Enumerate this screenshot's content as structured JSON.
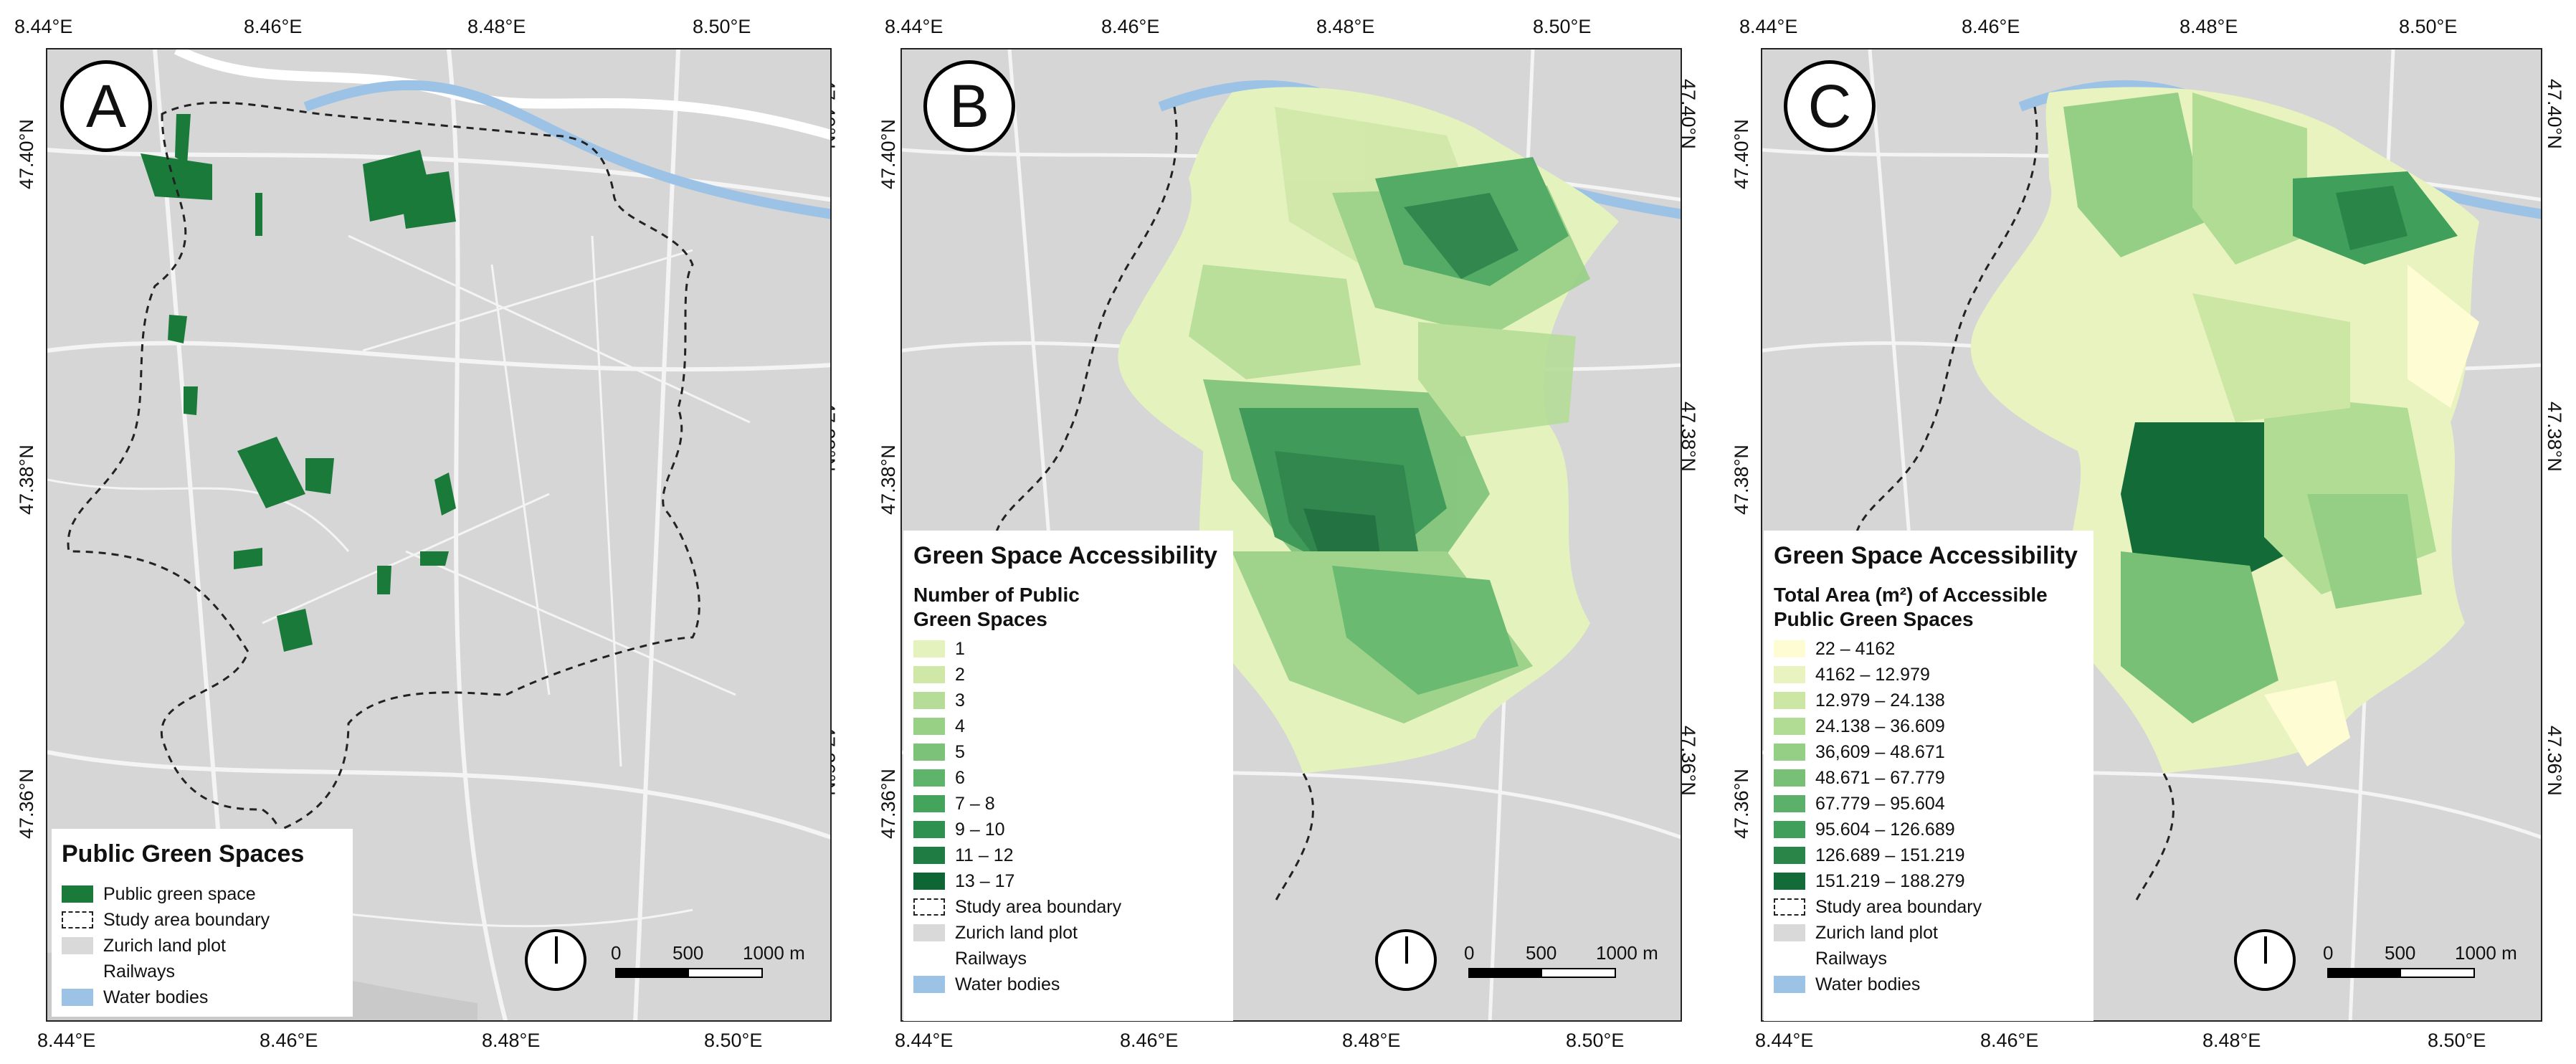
{
  "figure": {
    "lon_ticks": [
      "8.44°E",
      "8.46°E",
      "8.48°E",
      "8.50°E"
    ],
    "lat_ticks": [
      "47.40°N",
      "47.38°N",
      "47.36°N"
    ],
    "colors": {
      "land": "#d6d6d6",
      "street": "#f4f4f4",
      "water": "#9cc3e6",
      "green_space": "#1a7a3a",
      "boundary": "#222222"
    },
    "scalebar": {
      "labels": [
        "0",
        "500",
        "1000 m"
      ]
    }
  },
  "panels": [
    {
      "label": "A",
      "legend": {
        "title": "Public Green Spaces",
        "items": [
          {
            "label": "Public green space",
            "color": "#1a7a3a"
          },
          {
            "label": "Study area boundary",
            "style": "dashed"
          },
          {
            "label": "Zurich land plot",
            "color": "#d9d9d9"
          },
          {
            "label": "Railways",
            "color": "#ffffff"
          },
          {
            "label": "Water bodies",
            "color": "#9cc3e6"
          }
        ]
      }
    },
    {
      "label": "B",
      "legend": {
        "title": "Green Space Accessibility",
        "subtitle": "Number of Public Green Spaces",
        "classes": [
          {
            "label": "1",
            "color": "#e4f2be"
          },
          {
            "label": "2",
            "color": "#cfe8a8"
          },
          {
            "label": "3",
            "color": "#b5dd97"
          },
          {
            "label": "4",
            "color": "#98d086"
          },
          {
            "label": "5",
            "color": "#7cc278"
          },
          {
            "label": "6",
            "color": "#5db46a"
          },
          {
            "label": "7 – 8",
            "color": "#44a45c"
          },
          {
            "label": "9 – 10",
            "color": "#2f9150"
          },
          {
            "label": "11 – 12",
            "color": "#1f7c43"
          },
          {
            "label": "13 – 17",
            "color": "#0f6635"
          }
        ],
        "extras": [
          {
            "label": "Study area boundary",
            "style": "dashed"
          },
          {
            "label": "Zurich land plot",
            "color": "#d9d9d9"
          },
          {
            "label": "Railways",
            "color": "#ffffff"
          },
          {
            "label": "Water bodies",
            "color": "#9cc3e6"
          }
        ]
      }
    },
    {
      "label": "C",
      "legend": {
        "title": "Green Space Accessibility",
        "subtitle": "Total Area (m²) of Accessible Public Green Spaces",
        "classes": [
          {
            "label": "22 – 4162",
            "color": "#fdfcd2"
          },
          {
            "label": "4162 – 12.979",
            "color": "#e8f3c0"
          },
          {
            "label": "12.979 – 24.138",
            "color": "#cce7a4"
          },
          {
            "label": "24.138 – 36.609",
            "color": "#b1dc94"
          },
          {
            "label": "36,609 – 48.671",
            "color": "#95cf85"
          },
          {
            "label": "48.671 – 67.779",
            "color": "#79c077"
          },
          {
            "label": "67.779 – 95.604",
            "color": "#5cb16a"
          },
          {
            "label": "95.604 – 126.689",
            "color": "#409f5a"
          },
          {
            "label": "126.689 – 151.219",
            "color": "#2a8549"
          },
          {
            "label": "151.219 – 188.279",
            "color": "#136b37"
          }
        ],
        "extras": [
          {
            "label": "Study area boundary",
            "style": "dashed"
          },
          {
            "label": "Zurich land plot",
            "color": "#d9d9d9"
          },
          {
            "label": "Railways",
            "color": "#ffffff"
          },
          {
            "label": "Water bodies",
            "color": "#9cc3e6"
          }
        ]
      }
    }
  ]
}
